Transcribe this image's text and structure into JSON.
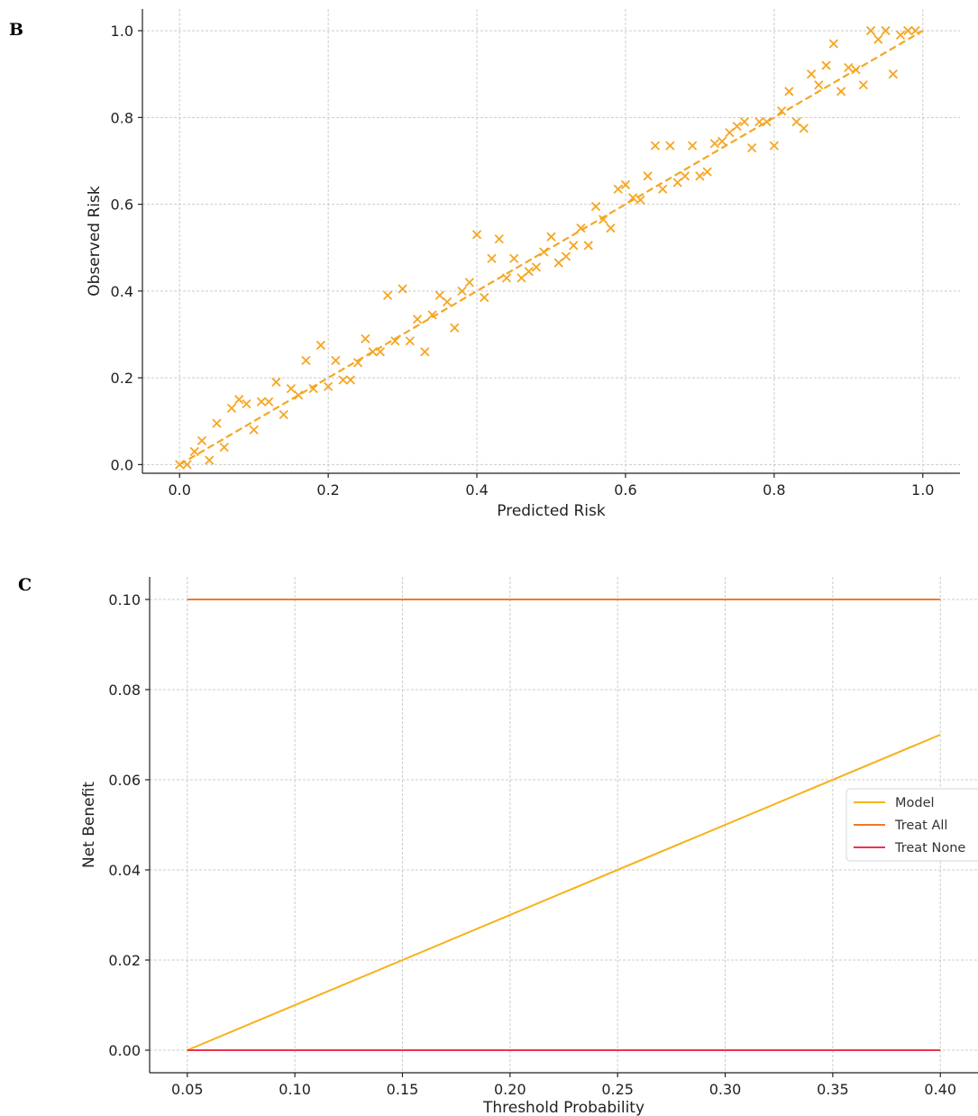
{
  "panels": [
    {
      "label": "B"
    },
    {
      "label": "C"
    }
  ],
  "chart_data": [
    {
      "type": "scatter",
      "xlabel": "Predicted Risk",
      "ylabel": "Observed Risk",
      "xlim": [
        -0.05,
        1.05
      ],
      "ylim": [
        -0.02,
        1.05
      ],
      "xticks": [
        0.0,
        0.2,
        0.4,
        0.6,
        0.8,
        1.0
      ],
      "xtick_labels": [
        "0.0",
        "0.2",
        "0.4",
        "0.6",
        "0.8",
        "1.0"
      ],
      "yticks": [
        0.0,
        0.2,
        0.4,
        0.6,
        0.8,
        1.0
      ],
      "ytick_labels": [
        "0.0",
        "0.2",
        "0.4",
        "0.6",
        "0.8",
        "1.0"
      ],
      "grid": true,
      "marker": "x",
      "color": "#f5a623",
      "reference_line": {
        "x": [
          0,
          1
        ],
        "y": [
          0,
          1
        ],
        "style": "dashed",
        "color": "#f5a623"
      },
      "points": [
        [
          0.0,
          0.0
        ],
        [
          0.01,
          0.0
        ],
        [
          0.02,
          0.03
        ],
        [
          0.03,
          0.055
        ],
        [
          0.04,
          0.01
        ],
        [
          0.05,
          0.095
        ],
        [
          0.06,
          0.04
        ],
        [
          0.07,
          0.13
        ],
        [
          0.08,
          0.15
        ],
        [
          0.09,
          0.14
        ],
        [
          0.1,
          0.08
        ],
        [
          0.11,
          0.145
        ],
        [
          0.12,
          0.145
        ],
        [
          0.13,
          0.19
        ],
        [
          0.14,
          0.115
        ],
        [
          0.15,
          0.175
        ],
        [
          0.16,
          0.16
        ],
        [
          0.17,
          0.24
        ],
        [
          0.18,
          0.175
        ],
        [
          0.19,
          0.275
        ],
        [
          0.2,
          0.18
        ],
        [
          0.21,
          0.24
        ],
        [
          0.22,
          0.195
        ],
        [
          0.23,
          0.195
        ],
        [
          0.24,
          0.235
        ],
        [
          0.25,
          0.29
        ],
        [
          0.26,
          0.26
        ],
        [
          0.27,
          0.26
        ],
        [
          0.28,
          0.39
        ],
        [
          0.29,
          0.285
        ],
        [
          0.3,
          0.405
        ],
        [
          0.31,
          0.285
        ],
        [
          0.32,
          0.335
        ],
        [
          0.33,
          0.26
        ],
        [
          0.34,
          0.345
        ],
        [
          0.35,
          0.39
        ],
        [
          0.36,
          0.375
        ],
        [
          0.37,
          0.315
        ],
        [
          0.38,
          0.4
        ],
        [
          0.39,
          0.42
        ],
        [
          0.4,
          0.53
        ],
        [
          0.41,
          0.385
        ],
        [
          0.42,
          0.475
        ],
        [
          0.43,
          0.52
        ],
        [
          0.44,
          0.43
        ],
        [
          0.45,
          0.475
        ],
        [
          0.46,
          0.43
        ],
        [
          0.47,
          0.445
        ],
        [
          0.48,
          0.455
        ],
        [
          0.49,
          0.49
        ],
        [
          0.5,
          0.525
        ],
        [
          0.51,
          0.465
        ],
        [
          0.52,
          0.48
        ],
        [
          0.53,
          0.505
        ],
        [
          0.54,
          0.545
        ],
        [
          0.55,
          0.505
        ],
        [
          0.56,
          0.595
        ],
        [
          0.57,
          0.565
        ],
        [
          0.58,
          0.545
        ],
        [
          0.59,
          0.635
        ],
        [
          0.6,
          0.645
        ],
        [
          0.61,
          0.615
        ],
        [
          0.62,
          0.61
        ],
        [
          0.63,
          0.665
        ],
        [
          0.64,
          0.735
        ],
        [
          0.65,
          0.635
        ],
        [
          0.66,
          0.735
        ],
        [
          0.67,
          0.65
        ],
        [
          0.68,
          0.665
        ],
        [
          0.69,
          0.735
        ],
        [
          0.7,
          0.665
        ],
        [
          0.71,
          0.675
        ],
        [
          0.72,
          0.74
        ],
        [
          0.73,
          0.745
        ],
        [
          0.74,
          0.765
        ],
        [
          0.75,
          0.78
        ],
        [
          0.76,
          0.79
        ],
        [
          0.77,
          0.73
        ],
        [
          0.78,
          0.79
        ],
        [
          0.79,
          0.79
        ],
        [
          0.8,
          0.735
        ],
        [
          0.81,
          0.815
        ],
        [
          0.82,
          0.86
        ],
        [
          0.83,
          0.79
        ],
        [
          0.84,
          0.775
        ],
        [
          0.85,
          0.9
        ],
        [
          0.86,
          0.875
        ],
        [
          0.87,
          0.92
        ],
        [
          0.88,
          0.97
        ],
        [
          0.89,
          0.86
        ],
        [
          0.9,
          0.915
        ],
        [
          0.91,
          0.91
        ],
        [
          0.92,
          0.875
        ],
        [
          0.93,
          1.0
        ],
        [
          0.94,
          0.98
        ],
        [
          0.95,
          1.0
        ],
        [
          0.96,
          0.9
        ],
        [
          0.97,
          0.99
        ],
        [
          0.98,
          1.0
        ],
        [
          0.99,
          1.0
        ]
      ]
    },
    {
      "type": "line",
      "xlabel": "Threshold Probability",
      "ylabel": "Net Benefit",
      "xlim": [
        0.0325,
        0.4175
      ],
      "ylim": [
        -0.005,
        0.105
      ],
      "xticks": [
        0.05,
        0.1,
        0.15,
        0.2,
        0.25,
        0.3,
        0.35,
        0.4
      ],
      "xtick_labels": [
        "0.05",
        "0.10",
        "0.15",
        "0.20",
        "0.25",
        "0.30",
        "0.35",
        "0.40"
      ],
      "yticks": [
        0.0,
        0.02,
        0.04,
        0.06,
        0.08,
        0.1
      ],
      "ytick_labels": [
        "0.00",
        "0.02",
        "0.04",
        "0.06",
        "0.08",
        "0.10"
      ],
      "grid": true,
      "legend_position": "center-right",
      "series": [
        {
          "name": "Model",
          "color": "#f6b21b",
          "x": [
            0.05,
            0.4
          ],
          "y": [
            0.0,
            0.07
          ]
        },
        {
          "name": "Treat All",
          "color": "#f07a2a",
          "x": [
            0.05,
            0.4
          ],
          "y": [
            0.1,
            0.1
          ]
        },
        {
          "name": "Treat None",
          "color": "#e8364f",
          "x": [
            0.05,
            0.4
          ],
          "y": [
            0.0,
            0.0
          ]
        }
      ]
    }
  ]
}
